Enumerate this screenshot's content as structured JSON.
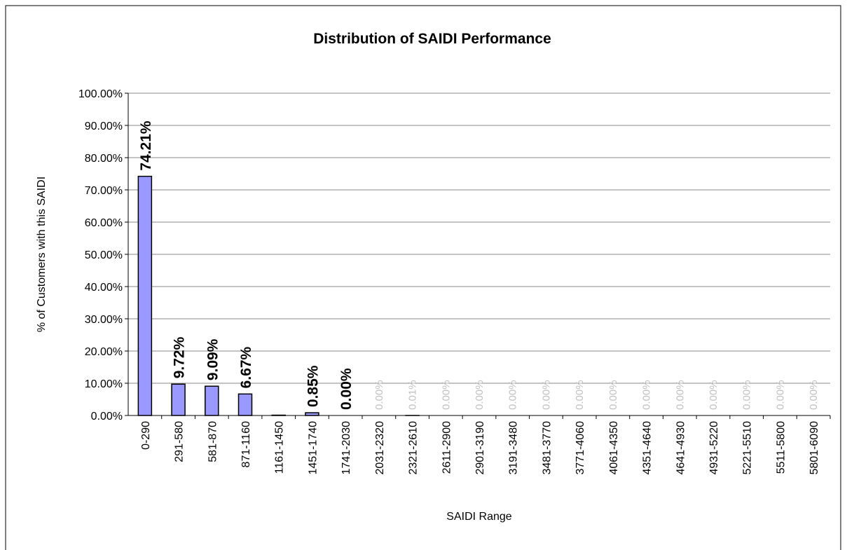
{
  "chart_data": {
    "type": "bar",
    "title": "Distribution of SAIDI Performance",
    "x_label": "SAIDI Range",
    "y_label": "% of Customers with this SAIDI",
    "categories": [
      "0-290",
      "291-580",
      "581-870",
      "871-1160",
      "1161-1450",
      "1451-1740",
      "1741-2030",
      "2031-2320",
      "2321-2610",
      "2611-2900",
      "2901-3190",
      "3191-3480",
      "3481-3770",
      "3771-4060",
      "4061-4350",
      "4351-4640",
      "4641-4930",
      "4931-5220",
      "5221-5510",
      "5511-5800",
      "5801-6090"
    ],
    "values": [
      74.21,
      9.72,
      9.09,
      6.67,
      0.1,
      0.85,
      0,
      0,
      0.01,
      0,
      0,
      0,
      0,
      0,
      0,
      0,
      0,
      0,
      0,
      0,
      0
    ],
    "value_labels": [
      "74.21%",
      "9.72%",
      "9.09%",
      "6.67%",
      null,
      "0.85%",
      "0.00%",
      "0.00%",
      "0.01%",
      "0.00%",
      "0.00%",
      "0.00%",
      "0.00%",
      "0.00%",
      "0.00%",
      "0.00%",
      "0.00%",
      "0.00%",
      "0.00%",
      "0.00%",
      "0.00%"
    ],
    "value_label_colors": [
      "#000000",
      "#000000",
      "#000000",
      "#000000",
      "#000000",
      "#000000",
      "#000000",
      "#c0c0c0",
      "#c0c0c0",
      "#c0c0c0",
      "#c0c0c0",
      "#c0c0c0",
      "#c0c0c0",
      "#c0c0c0",
      "#c0c0c0",
      "#c0c0c0",
      "#c0c0c0",
      "#c0c0c0",
      "#c0c0c0",
      "#c0c0c0",
      "#c0c0c0"
    ],
    "color": "#9999ff",
    "ylim": [
      0,
      100
    ],
    "yticks": [
      {
        "value": 0,
        "label": "0.00%"
      },
      {
        "value": 10,
        "label": "10.00%"
      },
      {
        "value": 20,
        "label": "20.00%"
      },
      {
        "value": 30,
        "label": "30.00%"
      },
      {
        "value": 40,
        "label": "40.00%"
      },
      {
        "value": 50,
        "label": "50.00%"
      },
      {
        "value": 60,
        "label": "60.00%"
      },
      {
        "value": 70,
        "label": "70.00%"
      },
      {
        "value": 80,
        "label": "80.00%"
      },
      {
        "value": 90,
        "label": "90.00%"
      },
      {
        "value": 100,
        "label": "100.00%"
      }
    ],
    "grid": true
  }
}
